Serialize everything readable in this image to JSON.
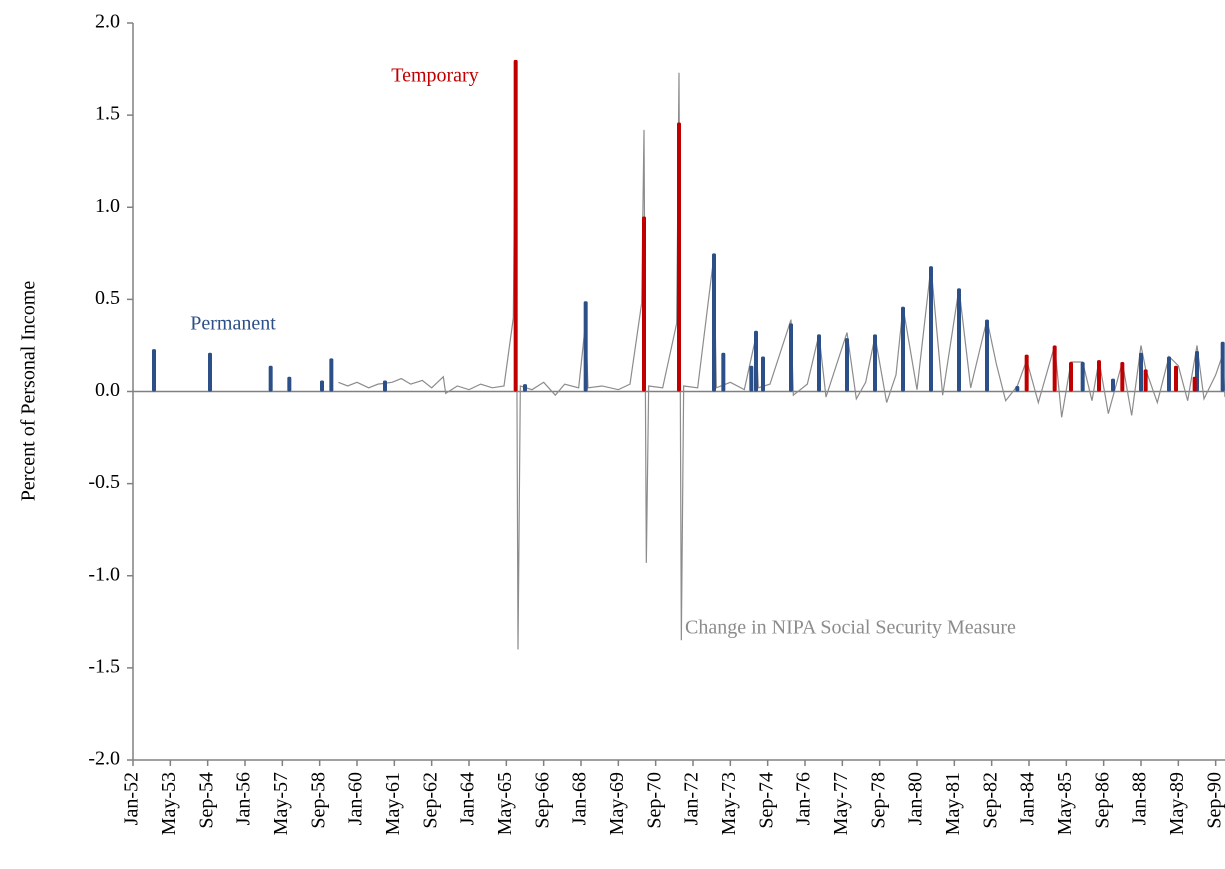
{
  "chart_data": {
    "type": "combo",
    "y_label": "Percent of Personal Income",
    "xlim": [
      "1952-01",
      "1991-01"
    ],
    "xticks": [
      {
        "value": "1952-01",
        "label": "Jan-52"
      },
      {
        "value": "1953-05",
        "label": "May-53"
      },
      {
        "value": "1954-09",
        "label": "Sep-54"
      },
      {
        "value": "1956-01",
        "label": "Jan-56"
      },
      {
        "value": "1957-05",
        "label": "May-57"
      },
      {
        "value": "1958-09",
        "label": "Sep-58"
      },
      {
        "value": "1960-01",
        "label": "Jan-60"
      },
      {
        "value": "1961-05",
        "label": "May-61"
      },
      {
        "value": "1962-09",
        "label": "Sep-62"
      },
      {
        "value": "1964-01",
        "label": "Jan-64"
      },
      {
        "value": "1965-05",
        "label": "May-65"
      },
      {
        "value": "1966-09",
        "label": "Sep-66"
      },
      {
        "value": "1968-01",
        "label": "Jan-68"
      },
      {
        "value": "1969-05",
        "label": "May-69"
      },
      {
        "value": "1970-09",
        "label": "Sep-70"
      },
      {
        "value": "1972-01",
        "label": "Jan-72"
      },
      {
        "value": "1973-05",
        "label": "May-73"
      },
      {
        "value": "1974-09",
        "label": "Sep-74"
      },
      {
        "value": "1976-01",
        "label": "Jan-76"
      },
      {
        "value": "1977-05",
        "label": "May-77"
      },
      {
        "value": "1978-09",
        "label": "Sep-78"
      },
      {
        "value": "1980-01",
        "label": "Jan-80"
      },
      {
        "value": "1981-05",
        "label": "May-81"
      },
      {
        "value": "1982-09",
        "label": "Sep-82"
      },
      {
        "value": "1984-01",
        "label": "Jan-84"
      },
      {
        "value": "1985-05",
        "label": "May-85"
      },
      {
        "value": "1986-09",
        "label": "Sep-86"
      },
      {
        "value": "1988-01",
        "label": "Jan-88"
      },
      {
        "value": "1989-05",
        "label": "May-89"
      },
      {
        "value": "1990-09",
        "label": "Sep-90"
      }
    ],
    "ylim": [
      -2,
      2
    ],
    "yticks": [
      {
        "value": 2,
        "label": "2.0"
      },
      {
        "value": 1.5,
        "label": "1.5"
      },
      {
        "value": 1,
        "label": "1.0"
      },
      {
        "value": 0.5,
        "label": "0.5"
      },
      {
        "value": 0,
        "label": "0.0"
      },
      {
        "value": -0.5,
        "label": "-0.5"
      },
      {
        "value": -1,
        "label": "-1.0"
      },
      {
        "value": -1.5,
        "label": "-1.5"
      },
      {
        "value": -2,
        "label": "-2.0"
      }
    ],
    "series": [
      {
        "name": "Change in NIPA Social Security Measure",
        "type": "line",
        "color": "#8c8c8c",
        "x": [
          "1959-05",
          "1959-09",
          "1960-01",
          "1960-06",
          "1960-10",
          "1961-04",
          "1961-08",
          "1961-12",
          "1962-05",
          "1962-09",
          "1963-02",
          "1963-03",
          "1963-08",
          "1964-01",
          "1964-06",
          "1964-11",
          "1965-04",
          "1965-08",
          "1965-09",
          "1965-10",
          "1965-11",
          "1966-04",
          "1966-09",
          "1967-02",
          "1967-06",
          "1967-12",
          "1968-03",
          "1968-04",
          "1968-10",
          "1969-05",
          "1969-10",
          "1970-03",
          "1970-04",
          "1970-05",
          "1970-06",
          "1970-12",
          "1971-06",
          "1971-07",
          "1971-08",
          "1971-09",
          "1972-03",
          "1972-10",
          "1972-11",
          "1973-05",
          "1973-11",
          "1974-04",
          "1974-05",
          "1974-10",
          "1975-07",
          "1975-08",
          "1976-02",
          "1976-07",
          "1976-10",
          "1977-07",
          "1977-11",
          "1978-03",
          "1978-07",
          "1978-12",
          "1979-04",
          "1979-07",
          "1980-01",
          "1980-07",
          "1980-12",
          "1981-07",
          "1981-12",
          "1982-07",
          "1982-11",
          "1983-03",
          "1983-08",
          "1983-12",
          "1984-05",
          "1984-12",
          "1985-03",
          "1985-07",
          "1985-12",
          "1986-04",
          "1986-07",
          "1986-11",
          "1987-05",
          "1987-09",
          "1988-01",
          "1988-03",
          "1988-08",
          "1989-01",
          "1989-05",
          "1989-09",
          "1990-01",
          "1990-04",
          "1990-09",
          "1990-12",
          "1991-01"
        ],
        "values": [
          0.05,
          0.03,
          0.05,
          0.02,
          0.04,
          0.05,
          0.07,
          0.04,
          0.06,
          0.02,
          0.08,
          -0.01,
          0.03,
          0.01,
          0.04,
          0.02,
          0.03,
          0.4,
          1.73,
          -1.4,
          0.03,
          0.01,
          0.05,
          -0.02,
          0.04,
          0.02,
          0.38,
          0.02,
          0.03,
          0.01,
          0.04,
          0.48,
          1.42,
          -0.93,
          0.03,
          0.02,
          0.37,
          1.73,
          -1.35,
          0.03,
          0.02,
          0.74,
          0.02,
          0.05,
          0.01,
          0.3,
          0.02,
          0.04,
          0.39,
          -0.02,
          0.04,
          0.31,
          -0.03,
          0.32,
          -0.04,
          0.05,
          0.3,
          -0.06,
          0.09,
          0.46,
          0.01,
          0.68,
          -0.02,
          0.56,
          0.02,
          0.39,
          0.15,
          -0.05,
          0.03,
          0.17,
          -0.06,
          0.25,
          -0.14,
          0.16,
          0.16,
          -0.05,
          0.17,
          -0.12,
          0.16,
          -0.13,
          0.25,
          0.12,
          -0.06,
          0.19,
          0.14,
          -0.05,
          0.25,
          -0.04,
          0.09,
          0.2,
          -0.03
        ]
      },
      {
        "name": "Permanent",
        "type": "bar",
        "color": "#2b4f86",
        "x": [
          "1952-10",
          "1954-10",
          "1956-12",
          "1957-08",
          "1958-10",
          "1959-02",
          "1961-01",
          "1966-01",
          "1968-03",
          "1972-10",
          "1973-02",
          "1974-02",
          "1974-04",
          "1974-07",
          "1975-07",
          "1976-07",
          "1977-07",
          "1978-07",
          "1979-07",
          "1980-07",
          "1981-07",
          "1982-07",
          "1983-08",
          "1985-12",
          "1987-01",
          "1988-01",
          "1989-01",
          "1990-01",
          "1990-12"
        ],
        "values": [
          0.23,
          0.21,
          0.14,
          0.08,
          0.06,
          0.18,
          0.06,
          0.04,
          0.49,
          0.75,
          0.21,
          0.14,
          0.33,
          0.19,
          0.37,
          0.31,
          0.29,
          0.31,
          0.46,
          0.68,
          0.56,
          0.39,
          0.03,
          0.16,
          0.07,
          0.21,
          0.19,
          0.22,
          0.27
        ]
      },
      {
        "name": "Temporary",
        "type": "bar",
        "color": "#c00000",
        "x": [
          "1965-09",
          "1970-04",
          "1971-07",
          "1983-12",
          "1984-12",
          "1985-07",
          "1986-07",
          "1987-05",
          "1988-03",
          "1989-04",
          "1989-12"
        ],
        "values": [
          1.8,
          0.95,
          1.46,
          0.2,
          0.25,
          0.16,
          0.17,
          0.16,
          0.12,
          0.14,
          0.08
        ]
      }
    ]
  }
}
